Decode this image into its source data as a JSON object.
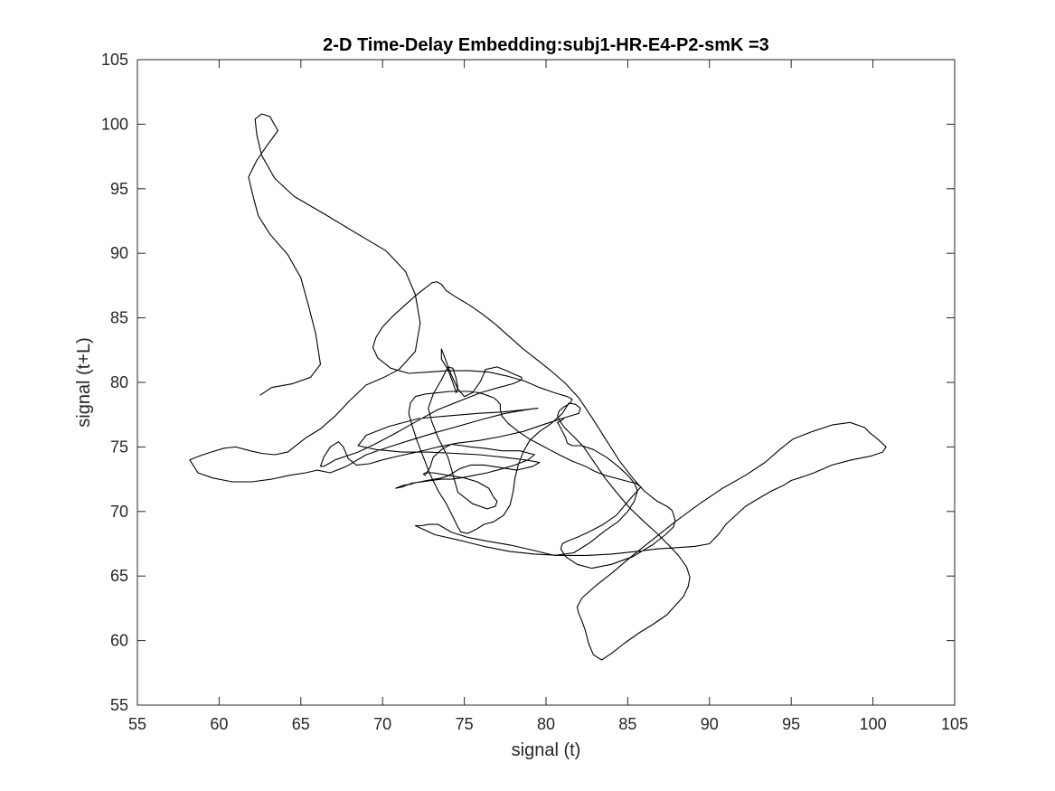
{
  "chart_data": {
    "type": "line",
    "title": "2-D Time-Delay Embedding:subj1-HR-E4-P2-smK =3",
    "xlabel": "signal (t)",
    "ylabel": "signal (t+L)",
    "xlim": [
      55,
      105
    ],
    "ylim": [
      55,
      105
    ],
    "xticks": [
      55,
      60,
      65,
      70,
      75,
      80,
      85,
      90,
      95,
      100,
      105
    ],
    "yticks": [
      55,
      60,
      65,
      70,
      75,
      80,
      85,
      90,
      95,
      100,
      105
    ],
    "grid": false,
    "legend": "none",
    "line_color": "#000000",
    "series": [
      {
        "x": [
          62.5,
          63.2,
          64.5,
          65.6,
          66.2,
          65.9,
          65.5,
          65.0,
          64.2,
          63.1,
          62.4,
          62.1,
          61.8,
          62.3,
          62.9,
          63.6,
          63.1,
          62.6,
          62.2,
          62.3,
          62.6,
          63.4,
          64.6,
          66.5,
          68.6,
          70.2,
          71.4,
          72.0,
          72.3,
          72.0,
          71.0,
          70.1,
          69.0,
          68.0,
          67.1,
          66.2,
          65.3,
          64.9,
          64.2,
          63.4,
          62.6,
          61.9,
          61.0,
          60.3,
          59.5,
          58.8,
          58.2,
          58.7,
          59.6,
          60.8,
          62.0,
          63.2,
          64.3,
          65.3,
          66.0,
          66.8,
          67.8,
          69.0,
          70.4,
          71.9,
          73.2,
          74.6,
          76.0,
          77.5,
          78.9,
          79.5,
          78.8,
          77.3,
          75.8,
          74.0,
          72.2,
          70.4,
          69.0,
          68.5,
          69.6,
          71.2,
          72.8,
          74.4,
          75.9,
          77.4,
          78.7,
          79.6,
          79.2,
          78.2,
          77.2,
          76.2,
          75.4,
          74.7,
          74.2,
          73.9,
          73.6,
          73.2,
          72.7,
          72.3,
          71.9,
          71.7,
          71.6,
          71.2,
          70.8,
          71.2,
          71.8,
          72.4,
          73.0,
          73.6,
          74.2,
          74.8,
          75.6,
          76.4,
          77.3,
          78.1,
          78.9,
          79.3,
          78.4,
          77.3,
          76.2,
          75.4,
          74.9,
          74.2,
          73.6,
          73.1,
          72.9,
          72.6,
          72.5,
          72.6,
          73.1,
          74.0,
          75.0,
          75.8,
          76.5,
          76.8,
          77.0,
          76.9,
          76.4,
          75.5,
          74.6,
          74.3,
          74.0,
          73.4,
          73.0,
          72.8,
          73.1,
          73.6,
          74.0,
          74.3,
          74.5,
          74.6,
          74.5,
          74.3,
          74.0,
          73.6,
          73.6,
          73.9,
          74.2,
          74.6,
          75.0,
          75.5,
          76.0,
          76.3,
          77.0,
          77.6,
          78.1,
          78.5,
          78.5,
          78.0,
          77.1,
          76.0,
          74.8,
          73.4,
          72.1,
          70.7,
          69.5,
          68.5,
          67.8,
          67.1,
          66.7,
          66.4,
          66.2,
          66.4,
          66.8,
          67.3,
          67.6,
          67.9,
          68.4,
          69.2,
          70.0,
          71.0,
          72.1,
          73.4,
          74.6,
          75.9,
          77.2,
          78.6,
          80.0,
          81.2,
          82.0,
          82.1,
          81.8,
          81.4,
          81.0,
          80.3,
          79.6,
          79.0,
          78.6,
          78.3,
          78.1,
          78.0,
          77.8,
          77.4,
          76.8,
          76.2,
          75.7,
          75.2,
          74.8,
          74.6,
          74.3,
          73.9,
          73.4,
          72.9,
          72.5,
          72.1,
          71.8,
          71.6,
          71.7,
          72.0,
          72.6,
          73.4,
          74.1,
          74.8,
          75.3,
          75.9,
          76.4,
          76.8,
          77.0,
          77.2,
          77.2,
          77.3,
          77.7,
          78.3,
          79.0,
          79.6,
          80.2,
          80.8,
          81.6,
          82.4,
          83.0,
          83.6,
          84.5,
          85.1,
          85.5,
          85.8,
          85.1,
          84.3,
          83.5,
          82.6,
          81.9,
          81.3,
          81.0,
          80.9,
          81.2,
          81.9,
          82.8,
          84.0,
          85.3,
          86.5,
          87.3,
          87.8,
          87.9,
          87.8,
          87.7,
          87.4,
          86.8,
          86.0,
          85.3,
          84.5,
          83.7,
          82.8,
          82.0,
          81.2,
          80.4,
          79.5,
          78.6,
          77.7,
          76.9,
          76.1,
          75.3,
          74.5,
          73.9,
          73.6,
          73.3,
          73.0,
          72.6,
          72.0,
          71.3,
          70.6,
          70.0,
          69.6,
          69.4,
          69.7,
          70.5,
          71.6,
          72.8,
          74.0,
          75.3,
          76.5,
          77.6,
          78.7,
          79.6,
          80.5,
          81.3,
          81.6,
          81.5,
          81.1,
          80.8,
          80.7,
          80.9,
          81.2,
          81.7,
          82.3,
          82.9,
          83.6,
          84.3,
          85.1,
          86.0,
          86.8,
          87.5,
          88.1,
          88.6,
          88.8,
          88.7,
          88.4,
          87.9,
          87.4,
          86.6,
          85.7,
          84.8,
          84.0,
          83.4,
          82.9,
          82.6,
          82.4,
          82.2,
          82.0,
          81.9,
          82.2,
          83.0,
          84.1,
          85.3,
          86.6,
          88.0,
          89.4,
          90.8,
          92.2,
          93.4,
          94.3,
          95.1,
          96.3,
          97.5,
          98.6,
          99.5,
          99.8,
          100.3,
          100.8,
          100.6,
          99.9,
          98.7,
          97.5,
          96.4,
          95.5,
          95.0,
          94.5,
          93.8,
          93.0,
          92.2,
          91.6,
          91.0,
          90.6,
          90.0,
          89.1,
          88.0,
          86.8,
          85.5,
          84.0,
          82.5,
          80.9,
          79.3,
          77.8,
          76.2,
          74.6,
          73.2,
          72.0,
          72.1,
          72.4,
          72.8,
          73.4,
          74.2,
          75.2,
          76.4,
          77.8,
          79.2,
          80.5,
          81.7,
          82.7,
          83.6,
          84.4,
          85.0,
          85.4,
          85.6,
          85.4,
          85.0,
          84.4,
          83.7,
          82.9,
          82.2,
          81.6,
          81.3,
          81.2,
          81.0,
          80.8,
          80.7,
          80.9,
          81.1
        ]
      }
    ],
    "y_values_note": "",
    "y": []
  }
}
